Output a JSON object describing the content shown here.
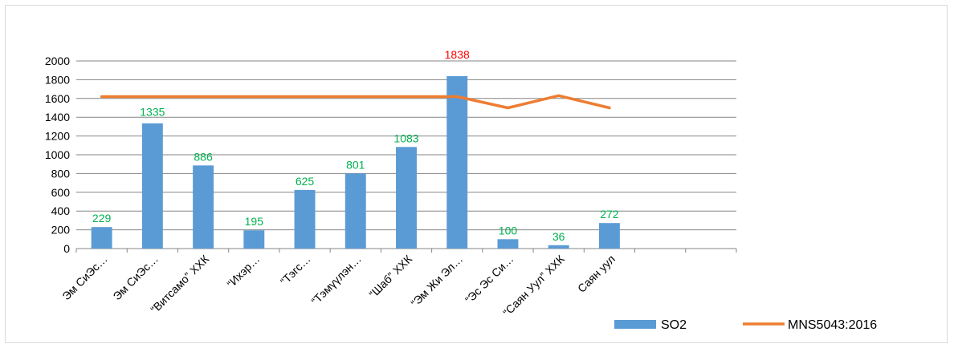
{
  "chart_data": {
    "type": "bar",
    "categories": [
      "Эм СиЭс…",
      "Эм СиЭс…",
      "“Витсамо” ХХК",
      "“Ихэр…",
      "“Тэгс…",
      "“Тэмүүлэн…",
      "“Шаб” ХХК",
      "“Эм Жи Эл…",
      "“Эс Эс Си…",
      "“Саян Уул” ХХК",
      "Саян уул",
      "",
      ""
    ],
    "series": [
      {
        "name": "SO2",
        "type": "bar",
        "color": "#5b9bd5",
        "values": [
          229,
          1335,
          886,
          195,
          625,
          801,
          1083,
          1838,
          100,
          36,
          272,
          null,
          null
        ]
      },
      {
        "name": "MNS5043:2016",
        "type": "line",
        "color": "#ed7d31",
        "values": [
          1620,
          1620,
          1620,
          1620,
          1620,
          1620,
          1620,
          1620,
          1500,
          1630,
          1500,
          null,
          null
        ]
      }
    ],
    "data_labels": [
      {
        "index": 0,
        "text": "229",
        "color": "#00b050"
      },
      {
        "index": 1,
        "text": "1335",
        "color": "#00b050"
      },
      {
        "index": 2,
        "text": "886",
        "color": "#00b050"
      },
      {
        "index": 3,
        "text": "195",
        "color": "#00b050"
      },
      {
        "index": 4,
        "text": "625",
        "color": "#00b050"
      },
      {
        "index": 5,
        "text": "801",
        "color": "#00b050"
      },
      {
        "index": 6,
        "text": "1083",
        "color": "#00b050"
      },
      {
        "index": 7,
        "text": "1838",
        "color": "#ff0000"
      },
      {
        "index": 8,
        "text": "100",
        "color": "#00b050"
      },
      {
        "index": 9,
        "text": "36",
        "color": "#00b050"
      },
      {
        "index": 10,
        "text": "272",
        "color": "#00b050"
      }
    ],
    "y_ticks": [
      "0",
      "200",
      "400",
      "600",
      "800",
      "1000",
      "1200",
      "1400",
      "1600",
      "1800",
      "2000"
    ],
    "ylim": [
      0,
      2000
    ],
    "grid": true,
    "legend": {
      "position": "bottom-right",
      "entries": [
        "SO2",
        "MNS5043:2016"
      ]
    },
    "colors": {
      "gridline": "#868686",
      "axis": "#868686"
    }
  }
}
